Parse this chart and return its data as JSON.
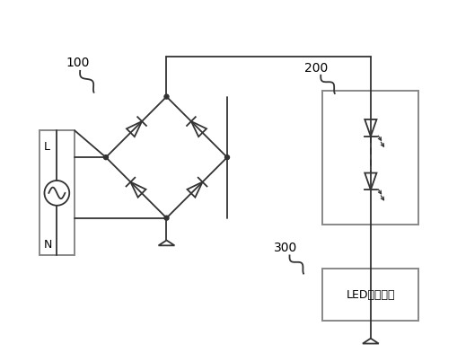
{
  "bg_color": "#ffffff",
  "line_color": "#333333",
  "box_color": "#888888",
  "label_100": "100",
  "label_200": "200",
  "label_300": "300",
  "label_L": "L",
  "label_N": "N",
  "label_led_driver": "LED驱动电路"
}
